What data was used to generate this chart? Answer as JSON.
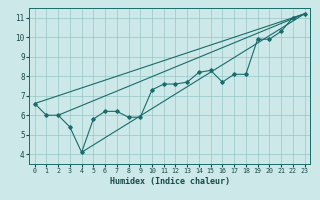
{
  "xlabel": "Humidex (Indice chaleur)",
  "ylabel": "",
  "xlim": [
    -0.5,
    23.5
  ],
  "ylim": [
    3.5,
    11.5
  ],
  "xticks": [
    0,
    1,
    2,
    3,
    4,
    5,
    6,
    7,
    8,
    9,
    10,
    11,
    12,
    13,
    14,
    15,
    16,
    17,
    18,
    19,
    20,
    21,
    22,
    23
  ],
  "yticks": [
    4,
    5,
    6,
    7,
    8,
    9,
    10,
    11
  ],
  "bg_color": "#cce8e8",
  "line_color": "#1a6b6b",
  "data_x": [
    0,
    1,
    2,
    3,
    4,
    5,
    6,
    7,
    8,
    9,
    10,
    11,
    12,
    13,
    14,
    15,
    16,
    17,
    18,
    19,
    20,
    21,
    22,
    23
  ],
  "data_y": [
    6.6,
    6.0,
    6.0,
    5.4,
    4.1,
    5.8,
    6.2,
    6.2,
    5.9,
    5.9,
    7.3,
    7.6,
    7.6,
    7.7,
    8.2,
    8.3,
    7.7,
    8.1,
    8.1,
    9.9,
    9.9,
    10.3,
    11.0,
    11.2
  ],
  "line1_x": [
    0,
    23
  ],
  "line1_y": [
    6.6,
    11.2
  ],
  "line2_x": [
    2,
    23
  ],
  "line2_y": [
    6.0,
    11.2
  ],
  "line3_x": [
    4,
    23
  ],
  "line3_y": [
    4.1,
    11.2
  ]
}
